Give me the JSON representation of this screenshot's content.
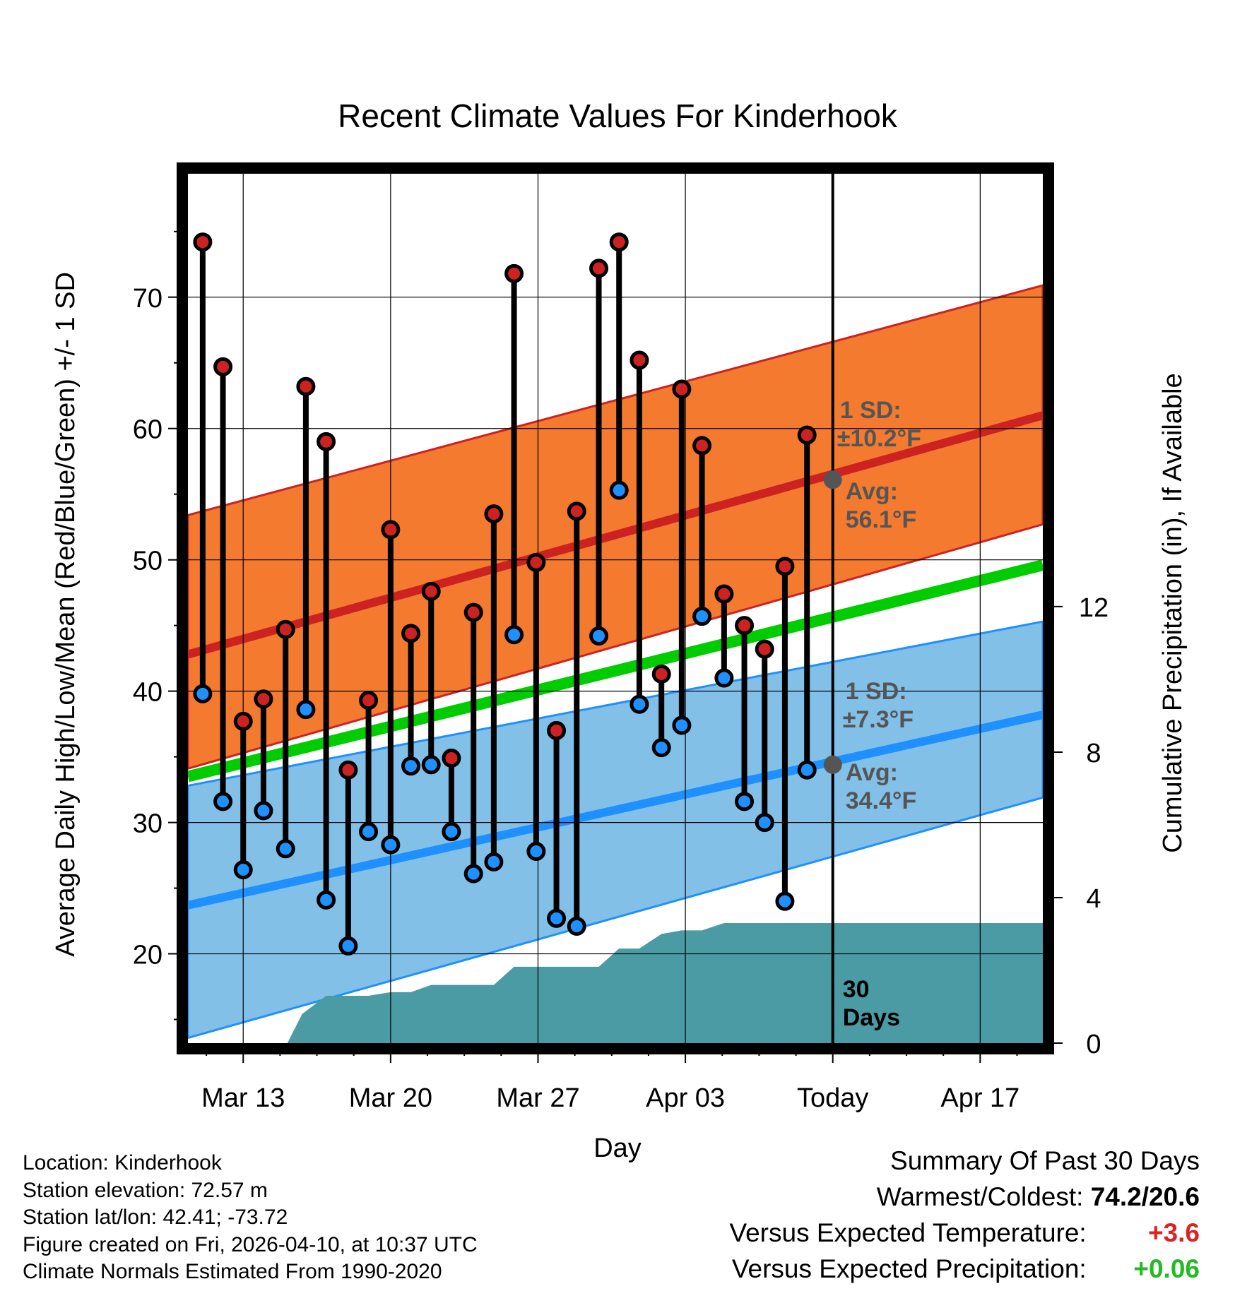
{
  "chart_data": {
    "type": "line",
    "title": "Recent Climate Values For Kinderhook",
    "xlabel": "Day",
    "ylabel": "Average Daily High/Low/Mean (Red/Blue/Green) +/- 1 SD",
    "y2label": "Cumulative Precipitation (in), If Available",
    "xlim": [
      -3.0,
      43.4
    ],
    "ylim": [
      13.2,
      79.4
    ],
    "y2lim": [
      0,
      23.9
    ],
    "x_tick_positions": [
      0,
      8,
      16,
      24,
      32,
      40
    ],
    "x_tick_labels": [
      "Mar 13",
      "Mar 20",
      "Mar 27",
      "Apr 03",
      "Today",
      "Apr 17"
    ],
    "y_ticks": [
      20,
      30,
      40,
      50,
      60,
      70
    ],
    "y2_ticks": [
      0,
      4,
      8,
      12
    ],
    "y2_tick_labels": [
      "0",
      "4",
      "8",
      "12"
    ],
    "today_x": 32,
    "today_marker_label": "30\nDays",
    "days_x": [
      -2.2,
      -1.1,
      0,
      1.1,
      2.3,
      3.4,
      4.5,
      5.7,
      6.8,
      8.0,
      9.1,
      10.2,
      11.3,
      12.5,
      13.6,
      14.7,
      15.9,
      17.0,
      18.1,
      19.3,
      20.4,
      21.5,
      22.7,
      23.8,
      24.9,
      26.1,
      27.2,
      28.3,
      29.4,
      30.6
    ],
    "series": [
      {
        "name": "Daily High",
        "color": "#cc2222",
        "values": [
          74.2,
          64.7,
          37.7,
          39.4,
          44.7,
          63.2,
          59.0,
          34.0,
          39.3,
          52.3,
          44.4,
          47.6,
          34.9,
          46.0,
          53.5,
          71.8,
          49.8,
          37.0,
          53.7,
          72.2,
          74.2,
          65.2,
          41.3,
          63.0,
          58.7,
          47.4,
          45.0,
          43.2,
          49.5,
          59.5
        ]
      },
      {
        "name": "Daily Low",
        "color": "#1e90ff",
        "values": [
          39.8,
          31.6,
          26.4,
          30.9,
          28.0,
          38.6,
          24.1,
          20.6,
          29.3,
          28.3,
          34.3,
          34.4,
          29.3,
          26.1,
          27.0,
          44.3,
          27.8,
          22.7,
          22.1,
          44.2,
          55.3,
          39.0,
          35.7,
          37.4,
          45.7,
          41.0,
          31.6,
          30.0,
          24.0,
          34.0
        ]
      }
    ],
    "normals": {
      "x": [
        -3.0,
        43.4
      ],
      "high_mean": [
        42.8,
        61.0
      ],
      "high_upper": [
        53.4,
        70.9
      ],
      "high_lower": [
        34.1,
        52.7
      ],
      "mean": [
        33.5,
        49.6
      ],
      "low_mean": [
        23.7,
        38.2
      ],
      "low_upper": [
        32.8,
        45.3
      ],
      "low_lower": [
        13.6,
        31.9
      ]
    },
    "precipitation": {
      "x": [
        2.4,
        3.2,
        4.5,
        6.8,
        8.0,
        9.1,
        10.2,
        11.3,
        13.6,
        14.7,
        17.0,
        19.3,
        20.4,
        21.5,
        22.7,
        23.8,
        24.9,
        26.1,
        27.2,
        28.3,
        30.6,
        32.0,
        43.4
      ],
      "values": [
        0,
        0.8,
        1.3,
        1.3,
        1.4,
        1.4,
        1.6,
        1.6,
        1.6,
        2.1,
        2.1,
        2.1,
        2.6,
        2.6,
        3.0,
        3.1,
        3.1,
        3.3,
        3.3,
        3.3,
        3.3,
        3.3,
        3.3
      ]
    },
    "annotations": {
      "high_sd_label": "1 SD:",
      "high_sd_value": "±10.2°F",
      "high_avg_label": "Avg:",
      "high_avg_value": "56.1°F",
      "high_avg_point": 56.1,
      "low_sd_label": "1 SD:",
      "low_sd_value": "±7.3°F",
      "low_avg_label": "Avg:",
      "low_avg_value": "34.4°F",
      "low_avg_point": 34.4
    },
    "colors": {
      "high_band": "#f47a30",
      "high_line": "#cc2222",
      "low_band": "#82c0e8",
      "low_line": "#1e90ff",
      "mean_line": "#00cc00",
      "precip_fill": "#4a9ba4",
      "annotation_text": "#555555",
      "high_marker": "#cc2222",
      "low_marker": "#1e90ff"
    }
  },
  "info": {
    "location": "Location: Kinderhook",
    "elevation": "Station elevation: 72.57 m",
    "latlon": "Station lat/lon: 42.41; -73.72",
    "created": "Figure created on Fri, 2026-04-10, at 10:37 UTC",
    "normals": "Climate Normals Estimated From 1990-2020"
  },
  "summary": {
    "title": "Summary Of Past 30 Days",
    "warm_cold_label": "Warmest/Coldest:",
    "warm_cold_value": "74.2/20.6",
    "temp_label": "Versus Expected Temperature:",
    "temp_value": "+3.6",
    "temp_color": "#dd2222",
    "precip_label": "Versus Expected Precipitation:",
    "precip_value": "+0.06",
    "precip_color": "#22bb22"
  }
}
